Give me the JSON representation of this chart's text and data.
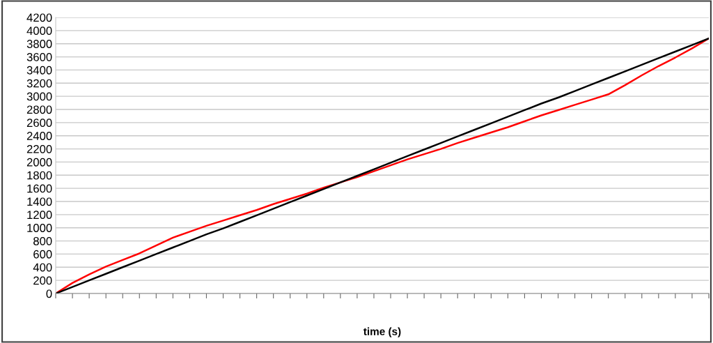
{
  "chart_data": {
    "type": "line",
    "xlabel": "time (s)",
    "categories": [
      null,
      null,
      null,
      null,
      null,
      null,
      null,
      null,
      null,
      null,
      null,
      null,
      null,
      null,
      null,
      null,
      null,
      null,
      null,
      null,
      null,
      null,
      null,
      null,
      null,
      null,
      null,
      null,
      null,
      null,
      null,
      null,
      null,
      null,
      null,
      null,
      null,
      null,
      null,
      null
    ],
    "series": [
      {
        "color": "#ff0000",
        "values": [
          0,
          160,
          290,
          410,
          510,
          610,
          730,
          850,
          940,
          1030,
          1110,
          1190,
          1270,
          1360,
          1440,
          1520,
          1610,
          1690,
          1770,
          1860,
          1950,
          2040,
          2120,
          2200,
          2290,
          2370,
          2450,
          2530,
          2620,
          2710,
          2790,
          2870,
          2950,
          3030,
          3170,
          3320,
          3460,
          3590,
          3730,
          3880
        ]
      },
      {
        "color": "#000000",
        "values": [
          0,
          100,
          200,
          300,
          400,
          500,
          600,
          700,
          800,
          900,
          990,
          1090,
          1190,
          1290,
          1390,
          1490,
          1590,
          1690,
          1790,
          1890,
          1990,
          2090,
          2190,
          2290,
          2390,
          2490,
          2590,
          2690,
          2790,
          2890,
          2980,
          3080,
          3180,
          3280,
          3380,
          3480,
          3580,
          3680,
          3780,
          3880
        ]
      }
    ],
    "ylim": [
      0,
      4200
    ],
    "yticks": [
      0,
      200,
      400,
      600,
      800,
      1000,
      1200,
      1400,
      1600,
      1800,
      2000,
      2200,
      2400,
      2600,
      2800,
      3000,
      3200,
      3400,
      3600,
      3800,
      4000,
      4200
    ],
    "grid": "y",
    "tick_labels": "y",
    "marker": "none",
    "line_style": "solid",
    "legend": false
  }
}
